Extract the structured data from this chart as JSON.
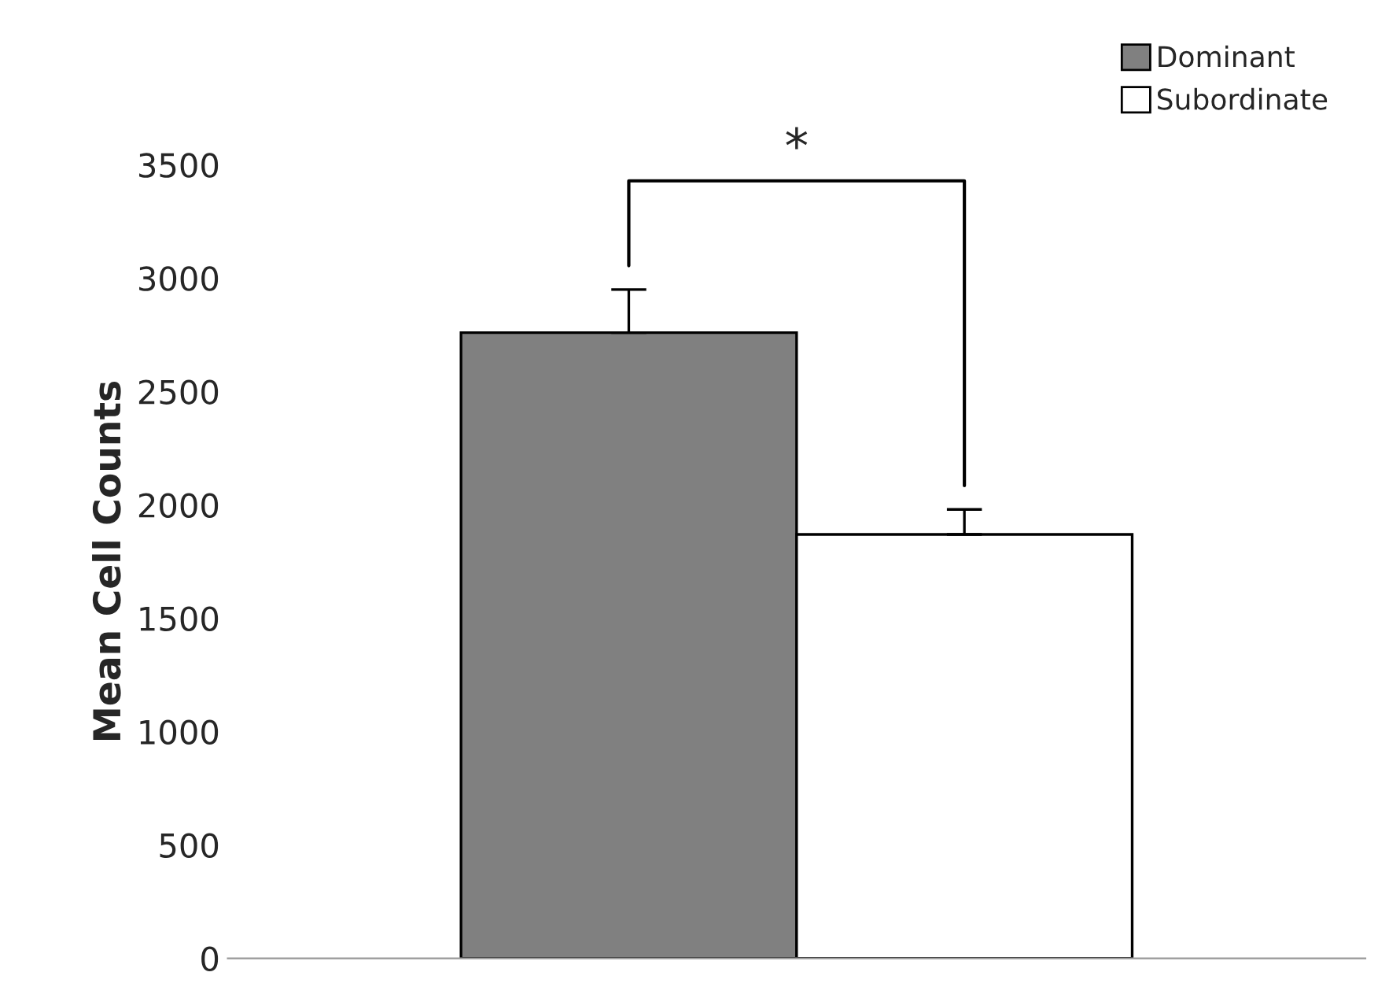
{
  "chart_data": {
    "type": "bar",
    "ylabel": "Mean Cell Counts",
    "categories": [
      null
    ],
    "series": [
      {
        "name": "Dominant",
        "color": "#808080",
        "values": [
          2760
        ],
        "errors": [
          [
            2760,
            2950
          ]
        ]
      },
      {
        "name": "Subordinate",
        "color": "#ffffff",
        "values": [
          1870
        ],
        "errors": [
          [
            1870,
            1980
          ]
        ]
      }
    ],
    "ylim": [
      0,
      3500
    ],
    "yticks": [
      0,
      500,
      1000,
      1500,
      2000,
      2500,
      3000,
      3500
    ],
    "legend": "top right",
    "grid": false,
    "tick_labels": "y",
    "annotations": [
      "*"
    ]
  }
}
